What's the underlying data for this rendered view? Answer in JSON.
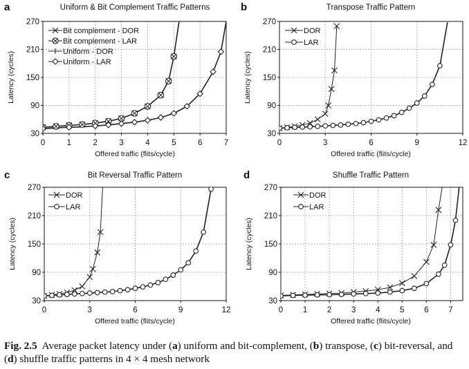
{
  "caption": {
    "label": "Fig. 2.5",
    "parts": [
      "Average packet latency under (",
      "a",
      ") uniform and bit-complement, (",
      "b",
      ") transpose, (",
      "c",
      ") bit-reversal, and (",
      "d",
      ") shuffle traffic patterns in 4 × 4 mesh network"
    ]
  },
  "chart_data": [
    {
      "id": "a",
      "letter": "a",
      "type": "line",
      "title": "Uniform & Bit Complement Traffic Patterns",
      "xlabel": "Offered traffic (flits/cycle)",
      "ylabel": "Latency (cycles)",
      "xlim": [
        0,
        7
      ],
      "ylim": [
        30,
        270
      ],
      "xticks": [
        0,
        1,
        2,
        3,
        4,
        5,
        6,
        7
      ],
      "yticks": [
        30,
        90,
        150,
        210,
        270
      ],
      "grid": true,
      "legend_position": "top-left",
      "series": [
        {
          "name": "Bit complement - DOR",
          "marker": "x",
          "x": [
            0,
            0.5,
            1,
            1.5,
            2,
            2.5,
            3,
            3.5,
            4,
            4.5,
            4.8,
            5,
            5.2
          ],
          "y": [
            43,
            45,
            47,
            49,
            52,
            56,
            62,
            73,
            88,
            112,
            142,
            195,
            270
          ]
        },
        {
          "name": "Bit complement - LAR",
          "marker": "otimes",
          "x": [
            0,
            0.5,
            1,
            1.5,
            2,
            2.5,
            3,
            3.5,
            4,
            4.5,
            4.8,
            5,
            5.2
          ],
          "y": [
            43,
            45,
            47,
            49,
            52,
            56,
            62,
            73,
            88,
            112,
            142,
            195,
            270
          ]
        },
        {
          "name": "Uniform - DOR",
          "marker": "plus",
          "x": [
            0,
            0.5,
            1,
            1.5,
            2,
            2.5,
            3,
            3.5,
            4,
            4.5,
            5,
            5.5,
            6,
            6.5,
            6.8,
            7
          ],
          "y": [
            40,
            42,
            43,
            44,
            46,
            48,
            51,
            54,
            58,
            64,
            73,
            88,
            115,
            162,
            205,
            270
          ]
        },
        {
          "name": "Uniform - LAR",
          "marker": "diamond",
          "x": [
            0,
            0.5,
            1,
            1.5,
            2,
            2.5,
            3,
            3.5,
            4,
            4.5,
            5,
            5.5,
            6,
            6.5,
            6.8,
            7
          ],
          "y": [
            40,
            42,
            43,
            44,
            46,
            48,
            51,
            54,
            58,
            64,
            73,
            88,
            115,
            162,
            205,
            270
          ]
        }
      ]
    },
    {
      "id": "b",
      "letter": "b",
      "type": "line",
      "title": "Transpose Traffic Pattern",
      "xlabel": "Offered traffic (flits/cycle)",
      "ylabel": "Latency (cycles)",
      "xlim": [
        0,
        12
      ],
      "ylim": [
        30,
        270
      ],
      "xticks": [
        0,
        3,
        6,
        9,
        12
      ],
      "yticks": [
        30,
        90,
        150,
        210,
        270
      ],
      "grid": true,
      "legend_position": "top-left",
      "series": [
        {
          "name": "DOR",
          "marker": "x",
          "x": [
            0,
            0.5,
            1,
            1.5,
            2,
            2.5,
            3,
            3.2,
            3.4,
            3.6,
            3.75
          ],
          "y": [
            41,
            43,
            45,
            48,
            52,
            60,
            72,
            90,
            125,
            165,
            260
          ]
        },
        {
          "name": "LAR",
          "marker": "circle",
          "x": [
            0,
            0.5,
            1,
            1.5,
            2,
            2.5,
            3,
            3.5,
            4,
            4.5,
            5,
            5.5,
            6,
            6.5,
            7,
            7.5,
            8,
            8.5,
            9,
            9.5,
            10,
            10.5,
            11
          ],
          "y": [
            41,
            42,
            43,
            43.5,
            44,
            45,
            46,
            47,
            48,
            49.5,
            51,
            53,
            56,
            59,
            63,
            68,
            75,
            84,
            95,
            110,
            135,
            175,
            268
          ]
        }
      ]
    },
    {
      "id": "c",
      "letter": "c",
      "type": "line",
      "title": "Bit Reversal Traffic Pattern",
      "xlabel": "Offered traffic (flits/cycle)",
      "ylabel": "Latency (cycles)",
      "xlim": [
        0,
        12
      ],
      "ylim": [
        30,
        270
      ],
      "xticks": [
        0,
        3,
        6,
        9,
        12
      ],
      "yticks": [
        30,
        90,
        150,
        210,
        270
      ],
      "grid": true,
      "legend_position": "top-left",
      "series": [
        {
          "name": "DOR",
          "marker": "x",
          "x": [
            0,
            0.5,
            1,
            1.5,
            2,
            2.5,
            3,
            3.2,
            3.5,
            3.7,
            3.85
          ],
          "y": [
            40,
            42,
            44,
            47,
            52,
            60,
            80,
            97,
            132,
            175,
            270
          ]
        },
        {
          "name": "LAR",
          "marker": "circle",
          "x": [
            0,
            0.5,
            1,
            1.5,
            2,
            2.5,
            3,
            3.5,
            4,
            4.5,
            5,
            5.5,
            6,
            6.5,
            7,
            7.5,
            8,
            8.5,
            9,
            9.5,
            10,
            10.5,
            11
          ],
          "y": [
            40,
            41,
            42,
            43,
            44,
            45,
            46,
            47,
            48,
            49,
            51,
            53,
            56,
            59,
            63,
            68,
            75,
            84,
            95,
            110,
            135,
            175,
            266
          ]
        }
      ]
    },
    {
      "id": "d",
      "letter": "d",
      "type": "line",
      "title": "Shuffle Traffic Pattern",
      "xlabel": "Offered traffic (flits/cycle)",
      "ylabel": "Latency (cycles)",
      "xlim": [
        0,
        7.5
      ],
      "ylim": [
        30,
        270
      ],
      "xticks": [
        0,
        1,
        2,
        3,
        4,
        5,
        6,
        7
      ],
      "yticks": [
        30,
        90,
        150,
        210,
        270
      ],
      "grid": true,
      "legend_position": "top-left",
      "series": [
        {
          "name": "DOR",
          "marker": "x",
          "x": [
            0,
            0.5,
            1,
            1.5,
            2,
            2.5,
            3,
            3.5,
            4,
            4.5,
            5,
            5.5,
            6,
            6.3,
            6.5,
            6.65
          ],
          "y": [
            41,
            42,
            43,
            44,
            45,
            46,
            48,
            50,
            53,
            58,
            67,
            82,
            112,
            148,
            222,
            270
          ]
        },
        {
          "name": "LAR",
          "marker": "circle",
          "x": [
            0,
            0.5,
            1,
            1.5,
            2,
            2.5,
            3,
            3.5,
            4,
            4.5,
            5,
            5.5,
            6,
            6.5,
            6.75,
            7,
            7.2,
            7.35
          ],
          "y": [
            40,
            41,
            41.5,
            42,
            42.5,
            43,
            44,
            45,
            46,
            48,
            51,
            56,
            66,
            86,
            105,
            148,
            200,
            270
          ]
        }
      ]
    }
  ]
}
